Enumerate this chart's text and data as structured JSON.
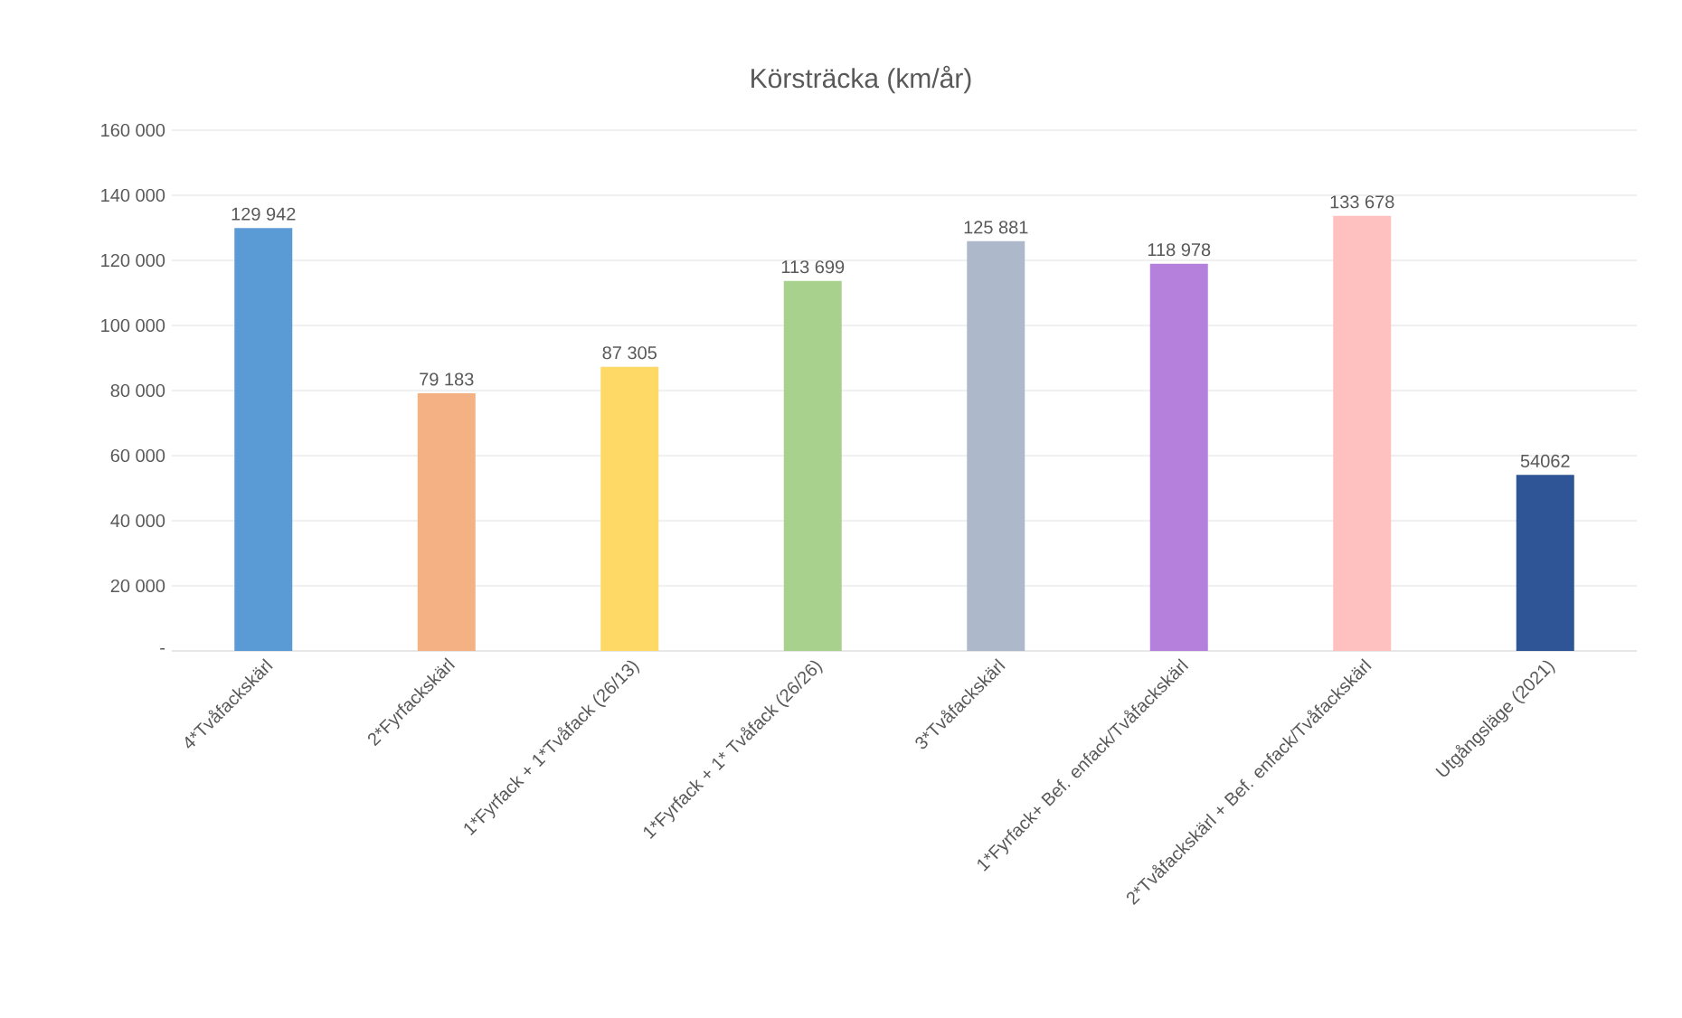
{
  "chart_data": {
    "type": "bar",
    "title": "Körsträcka (km/år)",
    "categories": [
      "4*Tvåfackskärl",
      "2*Fyrfackskärl",
      "1*Fyrfack + 1*Tvåfack (26/13)",
      "1*Fyrfack + 1* Tvåfack (26/26)",
      "3*Tvåfackskärl",
      "1*Fyrfack+ Bef. enfack/Tvåfackskärl",
      "2*Tvåfackskärl + Bef. enfack/Tvåfackskärl",
      "Utgångsläge (2021)"
    ],
    "values": [
      129942,
      79183,
      87305,
      113699,
      125881,
      118978,
      133678,
      54062
    ],
    "colors": [
      "#5b9bd5",
      "#f4b183",
      "#ffd966",
      "#a9d18e",
      "#adb9ca",
      "#b480dc",
      "#ffc0c0",
      "#2f5597"
    ],
    "value_labels": [
      "129 942",
      "79 183",
      "87 305",
      "113 699",
      "125 881",
      "118 978",
      "133 678",
      "54062"
    ],
    "ylim": [
      0,
      160000
    ],
    "yticks": [
      {
        "value": 0,
        "label": "-"
      },
      {
        "value": 20000,
        "label": "20 000"
      },
      {
        "value": 40000,
        "label": "40 000"
      },
      {
        "value": 60000,
        "label": "60 000"
      },
      {
        "value": 80000,
        "label": "80 000"
      },
      {
        "value": 100000,
        "label": "100 000"
      },
      {
        "value": 120000,
        "label": "120 000"
      },
      {
        "value": 140000,
        "label": "140 000"
      },
      {
        "value": 160000,
        "label": "160 000"
      }
    ],
    "grid": "y"
  }
}
